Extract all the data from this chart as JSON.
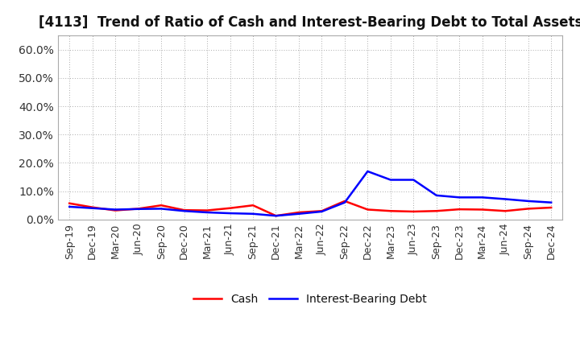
{
  "title": "[4113]  Trend of Ratio of Cash and Interest-Bearing Debt to Total Assets",
  "x_labels": [
    "Sep-19",
    "Dec-19",
    "Mar-20",
    "Jun-20",
    "Sep-20",
    "Dec-20",
    "Mar-21",
    "Jun-21",
    "Sep-21",
    "Dec-21",
    "Mar-22",
    "Jun-22",
    "Sep-22",
    "Dec-22",
    "Mar-23",
    "Jun-23",
    "Sep-23",
    "Dec-23",
    "Mar-24",
    "Jun-24",
    "Sep-24",
    "Dec-24"
  ],
  "cash": [
    0.057,
    0.043,
    0.032,
    0.038,
    0.05,
    0.033,
    0.032,
    0.04,
    0.05,
    0.013,
    0.025,
    0.03,
    0.065,
    0.035,
    0.03,
    0.028,
    0.03,
    0.036,
    0.035,
    0.03,
    0.038,
    0.042
  ],
  "interest_bearing_debt": [
    0.045,
    0.04,
    0.035,
    0.037,
    0.038,
    0.03,
    0.025,
    0.022,
    0.02,
    0.013,
    0.02,
    0.028,
    0.06,
    0.17,
    0.14,
    0.14,
    0.085,
    0.078,
    0.078,
    0.072,
    0.065,
    0.06
  ],
  "cash_color": "#ff0000",
  "debt_color": "#0000ff",
  "background_color": "#ffffff",
  "grid_color": "#aaaaaa",
  "ylim": [
    0.0,
    0.65
  ],
  "yticks": [
    0.0,
    0.1,
    0.2,
    0.3,
    0.4,
    0.5,
    0.6
  ],
  "ytick_labels": [
    "0.0%",
    "10.0%",
    "20.0%",
    "30.0%",
    "40.0%",
    "50.0%",
    "60.0%"
  ],
  "legend_cash": "Cash",
  "legend_debt": "Interest-Bearing Debt",
  "title_fontsize": 12,
  "tick_fontsize": 9,
  "legend_fontsize": 10,
  "line_width": 1.8
}
